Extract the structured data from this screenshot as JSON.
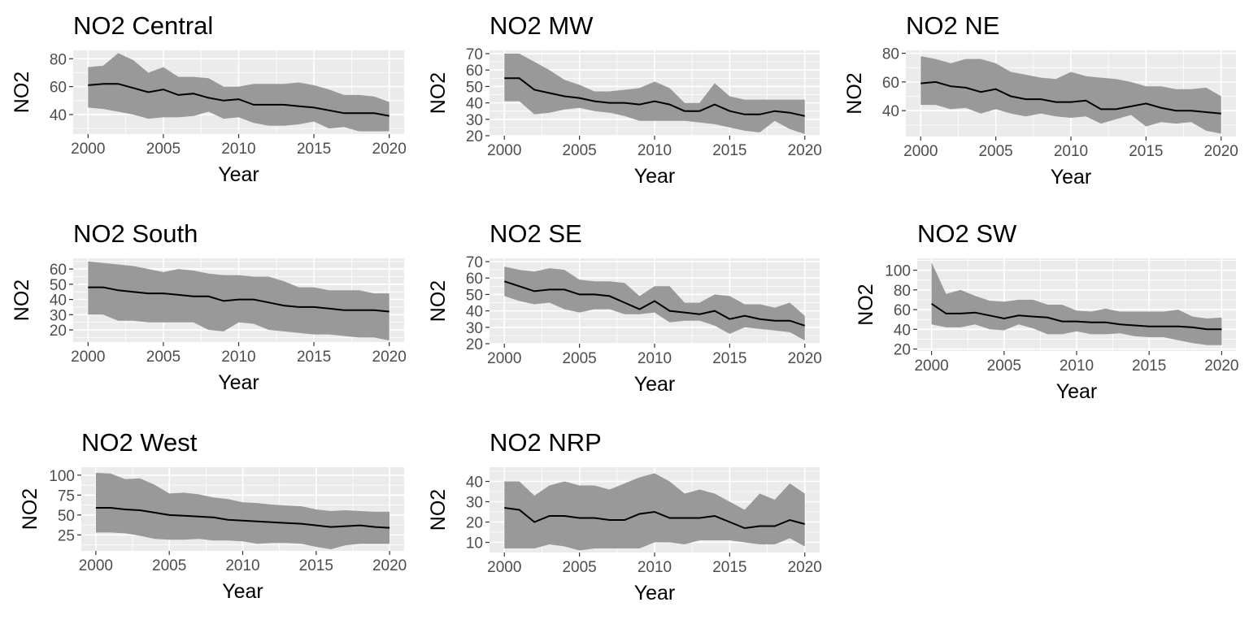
{
  "chart_data": [
    {
      "type": "line",
      "title": "NO2 Central",
      "xlabel": "Year",
      "ylabel": "NO2",
      "xlim": [
        2000,
        2020
      ],
      "ylim": [
        26,
        86
      ],
      "xticks": [
        2000,
        2005,
        2010,
        2015,
        2020
      ],
      "yticks": [
        40,
        60,
        80
      ],
      "x": [
        2000,
        2001,
        2002,
        2003,
        2004,
        2005,
        2006,
        2007,
        2008,
        2009,
        2010,
        2011,
        2012,
        2013,
        2014,
        2015,
        2016,
        2017,
        2018,
        2019,
        2020
      ],
      "series": [
        {
          "values": [
            61,
            62,
            62,
            59,
            56,
            58,
            54,
            55,
            52,
            50,
            51,
            47,
            47,
            47,
            46,
            45,
            43,
            41,
            41,
            41,
            39
          ]
        },
        {
          "values": [
            74,
            75,
            84,
            79,
            70,
            74,
            67,
            67,
            66,
            60,
            60,
            62,
            62,
            62,
            63,
            61,
            58,
            54,
            54,
            53,
            49
          ]
        },
        {
          "values": [
            45,
            44,
            42,
            40,
            37,
            38,
            38,
            39,
            42,
            37,
            38,
            34,
            32,
            32,
            33,
            35,
            30,
            31,
            28,
            28,
            28
          ]
        }
      ]
    },
    {
      "type": "line",
      "title": "NO2 MW",
      "xlabel": "Year",
      "ylabel": "NO2",
      "xlim": [
        2000,
        2020
      ],
      "ylim": [
        20,
        72
      ],
      "xticks": [
        2000,
        2005,
        2010,
        2015,
        2020
      ],
      "yticks": [
        20,
        30,
        40,
        50,
        60,
        70
      ],
      "x": [
        2000,
        2001,
        2002,
        2003,
        2004,
        2005,
        2006,
        2007,
        2008,
        2009,
        2010,
        2011,
        2012,
        2013,
        2014,
        2015,
        2016,
        2017,
        2018,
        2019,
        2020
      ],
      "series": [
        {
          "values": [
            55,
            55,
            48,
            46,
            44,
            43,
            41,
            40,
            40,
            39,
            41,
            39,
            35,
            35,
            39,
            35,
            33,
            33,
            35,
            34,
            32
          ]
        },
        {
          "values": [
            70,
            70,
            65,
            60,
            54,
            51,
            47,
            47,
            48,
            49,
            53,
            49,
            40,
            40,
            52,
            44,
            42,
            42,
            42,
            42,
            42
          ]
        },
        {
          "values": [
            41,
            41,
            33,
            34,
            36,
            37,
            35,
            34,
            32,
            29,
            29,
            29,
            29,
            28,
            27,
            25,
            23,
            22,
            29,
            24,
            21
          ]
        }
      ]
    },
    {
      "type": "line",
      "title": "NO2 NE",
      "xlabel": "Year",
      "ylabel": "NO2",
      "xlim": [
        2000,
        2020
      ],
      "ylim": [
        22,
        82
      ],
      "xticks": [
        2000,
        2005,
        2010,
        2015,
        2020
      ],
      "yticks": [
        40,
        60,
        80
      ],
      "x": [
        2000,
        2001,
        2002,
        2003,
        2004,
        2005,
        2006,
        2007,
        2008,
        2009,
        2010,
        2011,
        2012,
        2013,
        2014,
        2015,
        2016,
        2017,
        2018,
        2019,
        2020
      ],
      "series": [
        {
          "values": [
            59,
            60,
            57,
            56,
            53,
            55,
            50,
            48,
            48,
            46,
            46,
            47,
            41,
            41,
            43,
            45,
            42,
            40,
            40,
            39,
            38
          ]
        },
        {
          "values": [
            78,
            76,
            73,
            76,
            76,
            73,
            67,
            65,
            63,
            62,
            67,
            64,
            63,
            62,
            60,
            57,
            57,
            55,
            55,
            56,
            50
          ]
        },
        {
          "values": [
            44,
            44,
            41,
            42,
            38,
            41,
            38,
            36,
            38,
            36,
            35,
            36,
            31,
            34,
            37,
            29,
            32,
            31,
            32,
            26,
            24
          ]
        }
      ]
    },
    {
      "type": "line",
      "title": "NO2 South",
      "xlabel": "Year",
      "ylabel": "NO2",
      "xlim": [
        2000,
        2020
      ],
      "ylim": [
        12,
        67
      ],
      "xticks": [
        2000,
        2005,
        2010,
        2015,
        2020
      ],
      "yticks": [
        20,
        30,
        40,
        50,
        60
      ],
      "x": [
        2000,
        2001,
        2002,
        2003,
        2004,
        2005,
        2006,
        2007,
        2008,
        2009,
        2010,
        2011,
        2012,
        2013,
        2014,
        2015,
        2016,
        2017,
        2018,
        2019,
        2020
      ],
      "series": [
        {
          "values": [
            48,
            48,
            46,
            45,
            44,
            44,
            43,
            42,
            42,
            39,
            40,
            40,
            38,
            36,
            35,
            35,
            34,
            33,
            33,
            33,
            32
          ]
        },
        {
          "values": [
            65,
            64,
            63,
            62,
            60,
            58,
            60,
            59,
            57,
            56,
            56,
            55,
            55,
            52,
            48,
            48,
            46,
            46,
            46,
            44,
            44
          ]
        },
        {
          "values": [
            30,
            30,
            26,
            26,
            25,
            25,
            25,
            25,
            20,
            19,
            25,
            24,
            20,
            19,
            18,
            17,
            17,
            16,
            15,
            15,
            13
          ]
        }
      ]
    },
    {
      "type": "line",
      "title": "NO2 SE",
      "xlabel": "Year",
      "ylabel": "NO2",
      "xlim": [
        2000,
        2020
      ],
      "ylim": [
        20,
        72
      ],
      "xticks": [
        2000,
        2005,
        2010,
        2015,
        2020
      ],
      "yticks": [
        20,
        30,
        40,
        50,
        60,
        70
      ],
      "x": [
        2000,
        2001,
        2002,
        2003,
        2004,
        2005,
        2006,
        2007,
        2008,
        2009,
        2010,
        2011,
        2012,
        2013,
        2014,
        2015,
        2016,
        2017,
        2018,
        2019,
        2020
      ],
      "series": [
        {
          "values": [
            58,
            55,
            52,
            53,
            53,
            50,
            50,
            49,
            45,
            41,
            46,
            40,
            39,
            38,
            40,
            35,
            37,
            35,
            34,
            34,
            31
          ]
        },
        {
          "values": [
            67,
            65,
            64,
            66,
            65,
            59,
            58,
            58,
            57,
            49,
            55,
            55,
            45,
            45,
            50,
            49,
            44,
            44,
            42,
            45,
            37
          ]
        },
        {
          "values": [
            49,
            46,
            44,
            45,
            41,
            39,
            41,
            41,
            38,
            38,
            39,
            33,
            34,
            34,
            31,
            26,
            30,
            29,
            28,
            27,
            22
          ]
        }
      ]
    },
    {
      "type": "line",
      "title": "NO2 SW",
      "xlabel": "Year",
      "ylabel": "NO2",
      "xlim": [
        2000,
        2020
      ],
      "ylim": [
        18,
        112
      ],
      "xticks": [
        2000,
        2005,
        2010,
        2015,
        2020
      ],
      "yticks": [
        20,
        40,
        60,
        80,
        100
      ],
      "x": [
        2000,
        2001,
        2002,
        2003,
        2004,
        2005,
        2006,
        2007,
        2008,
        2009,
        2010,
        2011,
        2012,
        2013,
        2014,
        2015,
        2016,
        2017,
        2018,
        2019,
        2020
      ],
      "series": [
        {
          "values": [
            66,
            56,
            56,
            57,
            54,
            51,
            54,
            53,
            52,
            48,
            48,
            47,
            47,
            45,
            44,
            43,
            43,
            43,
            42,
            40,
            40
          ]
        },
        {
          "values": [
            108,
            76,
            80,
            74,
            69,
            68,
            70,
            70,
            65,
            65,
            59,
            58,
            61,
            58,
            58,
            58,
            58,
            60,
            53,
            51,
            52
          ]
        },
        {
          "values": [
            45,
            42,
            42,
            45,
            40,
            39,
            45,
            41,
            35,
            35,
            38,
            35,
            35,
            36,
            33,
            32,
            32,
            29,
            26,
            24,
            24
          ]
        }
      ]
    },
    {
      "type": "line",
      "title": "NO2 West",
      "xlabel": "Year",
      "ylabel": "NO2",
      "xlim": [
        2000,
        2020
      ],
      "ylim": [
        5,
        110
      ],
      "xticks": [
        2000,
        2005,
        2010,
        2015,
        2020
      ],
      "yticks": [
        25,
        50,
        75,
        100
      ],
      "x": [
        2000,
        2001,
        2002,
        2003,
        2004,
        2005,
        2006,
        2007,
        2008,
        2009,
        2010,
        2011,
        2012,
        2013,
        2014,
        2015,
        2016,
        2017,
        2018,
        2019,
        2020
      ],
      "series": [
        {
          "values": [
            59,
            59,
            57,
            56,
            53,
            50,
            49,
            48,
            47,
            44,
            43,
            42,
            41,
            40,
            39,
            37,
            35,
            36,
            37,
            35,
            34
          ]
        },
        {
          "values": [
            103,
            102,
            95,
            96,
            88,
            77,
            78,
            76,
            72,
            70,
            66,
            65,
            63,
            62,
            61,
            57,
            55,
            56,
            55,
            54,
            54
          ]
        },
        {
          "values": [
            28,
            28,
            27,
            24,
            20,
            19,
            19,
            20,
            18,
            18,
            17,
            14,
            15,
            15,
            14,
            10,
            7,
            12,
            14,
            14,
            14
          ]
        }
      ]
    },
    {
      "type": "line",
      "title": "NO2 NRP",
      "xlabel": "Year",
      "ylabel": "NO2",
      "xlim": [
        2000,
        2020
      ],
      "ylim": [
        5,
        47
      ],
      "xticks": [
        2000,
        2005,
        2010,
        2015,
        2020
      ],
      "yticks": [
        10,
        20,
        30,
        40
      ],
      "x": [
        2000,
        2001,
        2002,
        2003,
        2004,
        2005,
        2006,
        2007,
        2008,
        2009,
        2010,
        2011,
        2012,
        2013,
        2014,
        2015,
        2016,
        2017,
        2018,
        2019,
        2020
      ],
      "series": [
        {
          "values": [
            27,
            26,
            20,
            23,
            23,
            22,
            22,
            21,
            21,
            24,
            25,
            22,
            22,
            22,
            23,
            20,
            17,
            18,
            18,
            21,
            19
          ]
        },
        {
          "values": [
            40,
            40,
            33,
            38,
            40,
            38,
            38,
            36,
            39,
            42,
            44,
            40,
            34,
            36,
            34,
            30,
            26,
            34,
            31,
            39,
            34
          ]
        },
        {
          "values": [
            7,
            7,
            7,
            9,
            8,
            6,
            7,
            7,
            7,
            7,
            10,
            10,
            9,
            11,
            11,
            11,
            10,
            9,
            9,
            12,
            8
          ]
        }
      ]
    }
  ]
}
